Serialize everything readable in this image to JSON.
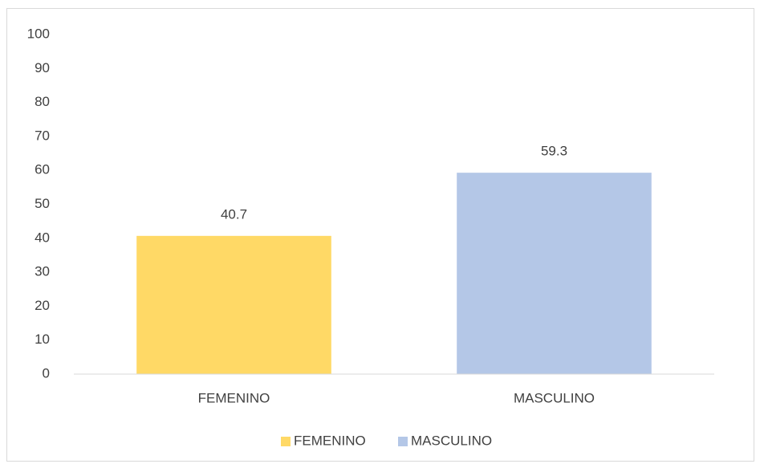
{
  "chart_data": {
    "type": "bar",
    "categories": [
      "FEMENINO",
      "MASCULINO"
    ],
    "values": [
      40.7,
      59.3
    ],
    "colors": [
      "#ffd966",
      "#b4c7e7"
    ],
    "ylim": [
      0,
      100
    ],
    "yticks": [
      0,
      10,
      20,
      30,
      40,
      50,
      60,
      70,
      80,
      90,
      100
    ],
    "grid": false,
    "legend": "bottom"
  }
}
